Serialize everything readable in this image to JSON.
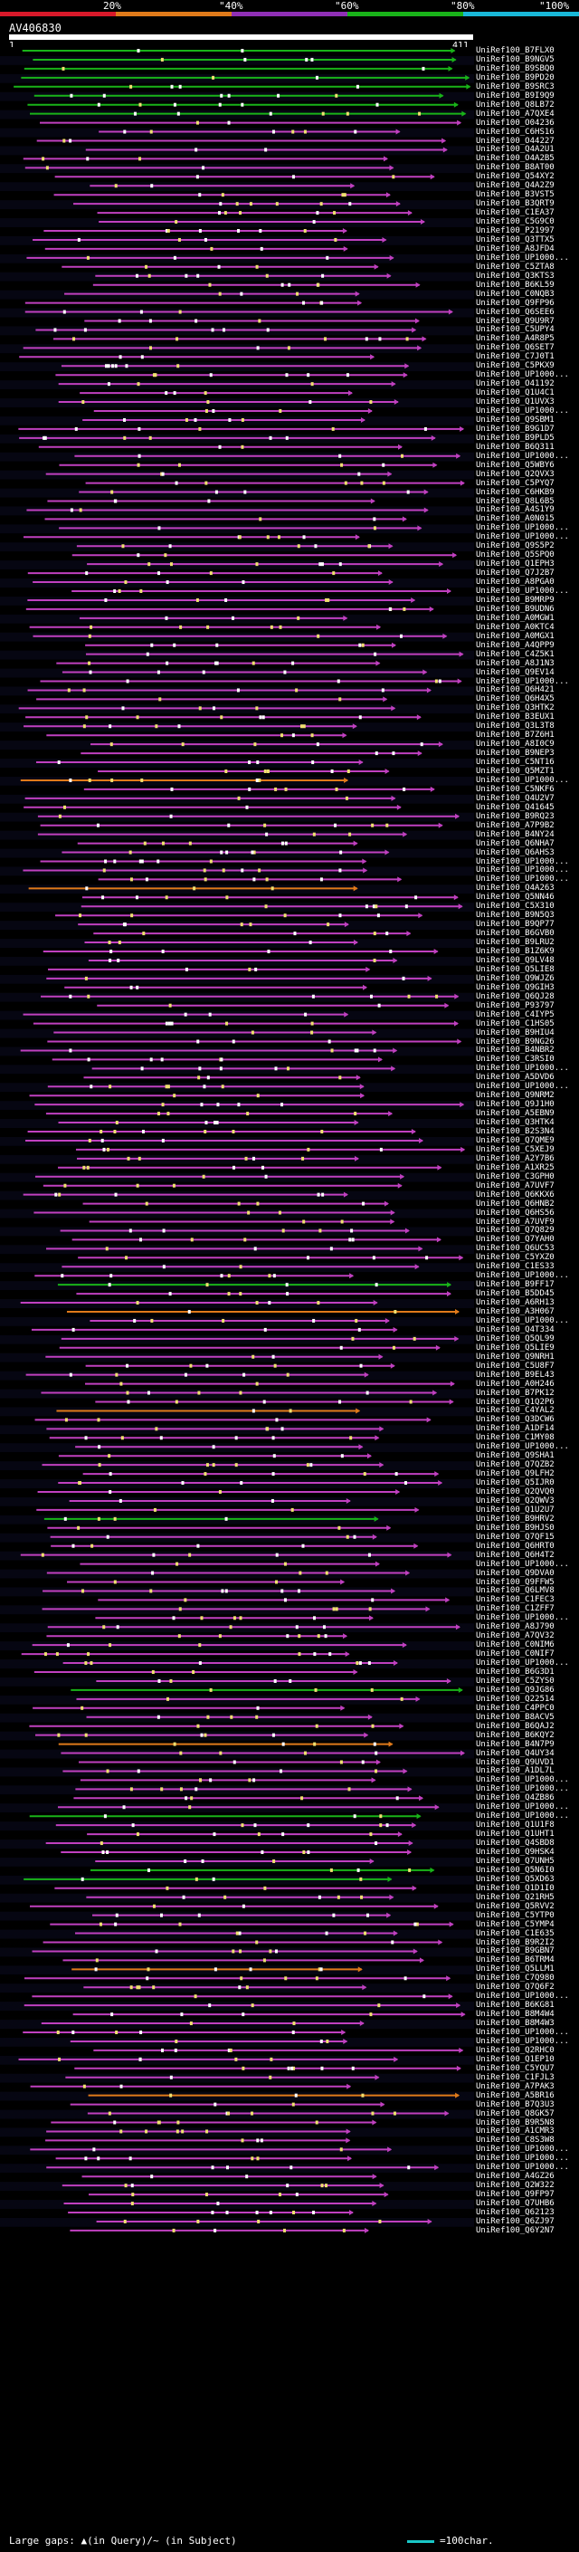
{
  "scale": {
    "labels": [
      "20%",
      "\"40%",
      "\"60%",
      "\"80%",
      "\"100%"
    ],
    "colors": [
      "#d8192a",
      "#e07a1a",
      "#8f2fb5",
      "#19b319",
      "#19b8d8"
    ]
  },
  "query": {
    "name": "AV406830",
    "start": "1",
    "end": "411"
  },
  "colors": {
    "pink": "#c040c0",
    "green": "#19b319",
    "orange": "#e07a1a",
    "gap": "#19c7c7"
  },
  "hits": [
    "UniRef100_B7FLX0",
    "UniRef100_B9NGV5",
    "UniRef100_B9SBQ0",
    "UniRef100_B9PD20",
    "UniRef100_B9SRC3",
    "UniRef100_B9I9Q9",
    "UniRef100_Q8LB72",
    "UniRef100_A7QXE4",
    "UniRef100_O04236",
    "UniRef100_C6HS16",
    "UniRef100_O44227",
    "UniRef100_Q4A2U1",
    "UniRef100_O4A2B5",
    "UniRef100_B8AT00",
    "UniRef100_Q54XY2",
    "UniRef100_Q4A2Z9",
    "UniRef100_B3VST5",
    "UniRef100_B3QRT9",
    "UniRef100_C1EA37",
    "UniRef100_C5G9C0",
    "UniRef100_P21997",
    "UniRef100_Q3TTX5",
    "UniRef100_A8JFD4",
    "UniRef100_UP1000...",
    "UniRef100_C5ZTA8",
    "UniRef100_Q3KTS3",
    "UniRef100_B6KL59",
    "UniRef100_C0NQB3",
    "UniRef100_Q9FP96",
    "UniRef100_Q6SEE6",
    "UniRef100_Q9U9R7",
    "UniRef100_C5UPY4",
    "UniRef100_A4R8P5",
    "UniRef100_Q6SET7",
    "UniRef100_C7J0T1",
    "UniRef100_C5PKX9",
    "UniRef100_UP1000...",
    "UniRef100_O41192",
    "UniRef100_Q1U4C1",
    "UniRef100_Q1UVX3",
    "UniRef100_UP1000...",
    "UniRef100_Q9SBM1",
    "UniRef100_B9G1D7",
    "UniRef100_B9PLD5",
    "UniRef100_B6Q311",
    "UniRef100_UP1000...",
    "UniRef100_Q5WBY6",
    "UniRef100_Q2QVX3",
    "UniRef100_C5PYQ7",
    "UniRef100_C6HKB9",
    "UniRef100_Q8L6B5",
    "UniRef100_A4S1Y9",
    "UniRef100_A0N015",
    "UniRef100_UP1000...",
    "UniRef100_UP1000...",
    "UniRef100_Q9S5P2",
    "UniRef100_Q5SPQ0",
    "UniRef100_Q1EPH3",
    "UniRef100_Q7J2B7",
    "UniRef100_A8PGA0",
    "UniRef100_UP1000...",
    "UniRef100_B9MRP9",
    "UniRef100_B9UDN6",
    "UniRef100_A0MGW1",
    "UniRef100_A0KTC4",
    "UniRef100_A0MGX1",
    "UniRef100_A4QPP9",
    "UniRef100_C4Z5K1",
    "UniRef100_A8J1N3",
    "UniRef100_Q9EV14",
    "UniRef100_UP1000...",
    "UniRef100_Q6H421",
    "UniRef100_Q6H4X5",
    "UniRef100_Q3HTK2",
    "UniRef100_B3EUX1",
    "UniRef100_Q3L3T8",
    "UniRef100_B7Z6H1",
    "UniRef100_A8I0C9",
    "UniRef100_B9NEP3",
    "UniRef100_C5NT16",
    "UniRef100_Q5MZT1",
    "UniRef100_UP1000...",
    "UniRef100_C5NKF6",
    "UniRef100_Q4U2V7",
    "UniRef100_Q41645",
    "UniRef100_B9RQ23",
    "UniRef100_A7P9B2",
    "UniRef100_B4NY24",
    "UniRef100_Q6NHA7",
    "UniRef100_Q6AHS3",
    "UniRef100_UP1000...",
    "UniRef100_UP1000...",
    "UniRef100_UP1000...",
    "UniRef100_Q4A263",
    "UniRef100_Q5NN46",
    "UniRef100_C5X310",
    "UniRef100_B9N5Q3",
    "UniRef100_B9QP77",
    "UniRef100_B6GVB0",
    "UniRef100_B9LRU2",
    "UniRef100_B1Z6K9",
    "UniRef100_Q9LV48",
    "UniRef100_Q5LIE8",
    "UniRef100_Q9WJZ6",
    "UniRef100_Q9GIH3",
    "UniRef100_Q6QJ28",
    "UniRef100_P93797",
    "UniRef100_C4IYP5",
    "UniRef100_C1HS05",
    "UniRef100_B9HIU4",
    "UniRef100_B9NG26",
    "UniRef100_B4NBR2",
    "UniRef100_C3RSI0",
    "UniRef100_UP1000...",
    "UniRef100_A5DVD6",
    "UniRef100_UP1000...",
    "UniRef100_Q9NRM2",
    "UniRef100_Q9J1H0",
    "UniRef100_A5EBN9",
    "UniRef100_Q3HTK4",
    "UniRef100_B2S3N4",
    "UniRef100_Q7QME9",
    "UniRef100_C5XEJ9",
    "UniRef100_A2Y7B6",
    "UniRef100_A1XR25",
    "UniRef100_C3GPH0",
    "UniRef100_A7UVF7",
    "UniRef100_Q6KKX6",
    "UniRef100_Q6HNB2",
    "UniRef100_Q6HS56",
    "UniRef100_A7UVF9",
    "UniRef100_Q7Q829",
    "UniRef100_Q7YAH0",
    "UniRef100_Q6UC53",
    "UniRef100_C5YXZ0",
    "UniRef100_C1ES33",
    "UniRef100_UP1000...",
    "UniRef100_B9FF17",
    "UniRef100_B5DD45",
    "UniRef100_A6RH13",
    "UniRef100_A3H067",
    "UniRef100_UP1000...",
    "UniRef100_Q4T334",
    "UniRef100_Q5QL99",
    "UniRef100_Q5LIE9",
    "UniRef100_Q9NRH1",
    "UniRef100_C5U8F7",
    "UniRef100_B9EL43",
    "UniRef100_A0H246",
    "UniRef100_B7PK12",
    "UniRef100_Q1Q2P6",
    "UniRef100_C4YAL2",
    "UniRef100_Q3DCW6",
    "UniRef100_A1DF14",
    "UniRef100_C1MY08",
    "UniRef100_UP1000...",
    "UniRef100_Q9SHA1",
    "UniRef100_Q7QZB2",
    "UniRef100_Q9LFH2",
    "UniRef100_Q5IJR0",
    "UniRef100_Q2QVQ0",
    "UniRef100_Q2QWV3",
    "UniRef100_Q1U2U7",
    "UniRef100_B9HRV2",
    "UniRef100_B9HJS0",
    "UniRef100_Q7QF15",
    "UniRef100_Q6HRT0",
    "UniRef100_Q6H4T2",
    "UniRef100_UP1000...",
    "UniRef100_Q9DVA0",
    "UniRef100_Q9FFW5",
    "UniRef100_Q6LMV8",
    "UniRef100_C1FEC3",
    "UniRef100_C1ZFF7",
    "UniRef100_UP1000...",
    "UniRef100_A8J790",
    "UniRef100_A7QV32",
    "UniRef100_C0NIM6",
    "UniRef100_C0NIF7",
    "UniRef100_UP1000...",
    "UniRef100_B6G3D1",
    "UniRef100_C5ZYS0",
    "UniRef100_Q9JG86",
    "UniRef100_Q22514",
    "UniRef100_C4PPC0",
    "UniRef100_B8ACV5",
    "UniRef100_B6QAJ2",
    "UniRef100_B6KQY2",
    "UniRef100_B4N7P9",
    "UniRef100_Q4UY34",
    "UniRef100_Q9UVD1",
    "UniRef100_A1DL7L",
    "UniRef100_UP1000...",
    "UniRef100_UP1000...",
    "UniRef100_Q4ZB86",
    "UniRef100_UP1000...",
    "UniRef100_UP1000...",
    "UniRef100_Q1U1F8",
    "UniRef100_Q1UHT1",
    "UniRef100_Q4SBD8",
    "UniRef100_Q9HSK4",
    "UniRef100_Q7UNH5",
    "UniRef100_Q5N6I0",
    "UniRef100_Q5XD63",
    "UniRef100_Q1D1I0",
    "UniRef100_Q21RH5",
    "UniRef100_Q5RVV2",
    "UniRef100_C5YTP0",
    "UniRef100_C5YMP4",
    "UniRef100_C1E635",
    "UniRef100_B9R2I2",
    "UniRef100_B9GBN7",
    "UniRef100_B6TRM4",
    "UniRef100_Q5LLM1",
    "UniRef100_C7Q980",
    "UniRef100_Q7Q6F2",
    "UniRef100_UP1000...",
    "UniRef100_B6KG81",
    "UniRef100_B8M4W4",
    "UniRef100_B8M4W3",
    "UniRef100_UP1000...",
    "UniRef100_UP1000...",
    "UniRef100_Q2RHC0",
    "UniRef100_Q1EP10",
    "UniRef100_C5YQU7",
    "UniRef100_C1FJL3",
    "UniRef100_A7PAK3",
    "UniRef100_A5BR16",
    "UniRef100_B7Q3U3",
    "UniRef100_Q8GK57",
    "UniRef100_B9R5N8",
    "UniRef100_A1CMR3",
    "UniRef100_C8S3W8",
    "UniRef100_UP1000...",
    "UniRef100_UP1000...",
    "UniRef100_UP1000...",
    "UniRef100_A4GZ26",
    "UniRef100_Q2W322",
    "UniRef100_Q9FP97",
    "UniRef100_Q7UHB6",
    "UniRef100_Q62123",
    "UniRef100_Q6ZJ97",
    "UniRef100_Q6Y2N7"
  ],
  "legend": {
    "large_gaps": "Large gaps: ▲(in Query)/~ (in Subject)",
    "scale_note": "=100char."
  }
}
